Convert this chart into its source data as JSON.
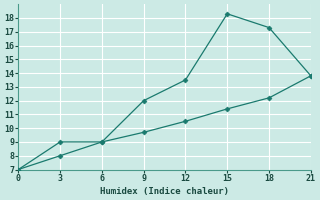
{
  "line1_x": [
    0,
    3,
    6,
    9,
    12,
    15,
    18,
    21
  ],
  "line1_y": [
    7.0,
    9.0,
    9.0,
    12.0,
    13.5,
    18.3,
    17.3,
    13.8
  ],
  "line2_x": [
    0,
    3,
    6,
    9,
    12,
    15,
    18,
    21
  ],
  "line2_y": [
    7.0,
    8.0,
    9.0,
    9.7,
    10.5,
    11.4,
    12.2,
    13.8
  ],
  "xlabel": "Humidex (Indice chaleur)",
  "xlim": [
    0,
    21
  ],
  "ylim": [
    7,
    19
  ],
  "xticks": [
    0,
    3,
    6,
    9,
    12,
    15,
    18,
    21
  ],
  "yticks": [
    7,
    8,
    9,
    10,
    11,
    12,
    13,
    14,
    15,
    16,
    17,
    18
  ],
  "line_color": "#1a7a6e",
  "bg_color": "#cceae5",
  "grid_color": "#ffffff",
  "spine_color": "#4a9a8a",
  "font_color": "#1a4a40"
}
